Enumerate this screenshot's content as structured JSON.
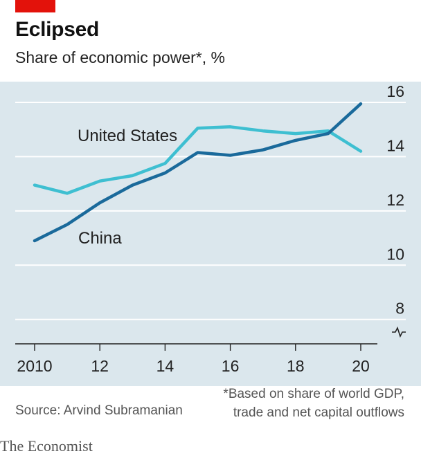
{
  "title": "Eclipsed",
  "subtitle": "Share of economic power*, %",
  "footnote_line1": "*Based on share of world GDP,",
  "footnote_line2": "trade and net capital outflows",
  "source": "Source: Arvind Subramanian",
  "brand": "The Economist",
  "colors": {
    "accent": "#e3120b",
    "background": "#dbe7ed",
    "china": "#1a6a9b",
    "us": "#3ebfd1",
    "grid": "#ffffff"
  },
  "chart_data": {
    "type": "line",
    "title": "Eclipsed",
    "subtitle": "Share of economic power*, %",
    "x": [
      2010,
      2011,
      2012,
      2013,
      2014,
      2015,
      2016,
      2017,
      2018,
      2019,
      2020
    ],
    "x_tick_values": [
      2010,
      2012,
      2014,
      2016,
      2018,
      2020
    ],
    "x_tick_labels": [
      "2010",
      "12",
      "14",
      "16",
      "18",
      "20"
    ],
    "y_ticks": [
      8,
      10,
      12,
      14,
      16
    ],
    "ylim": [
      7.1,
      16
    ],
    "grid": true,
    "series": [
      {
        "name": "United States",
        "color": "#3ebfd1",
        "values": [
          12.95,
          12.65,
          13.1,
          13.3,
          13.75,
          15.05,
          15.1,
          14.95,
          14.85,
          14.95,
          14.2
        ]
      },
      {
        "name": "China",
        "color": "#1a6a9b",
        "values": [
          10.9,
          11.5,
          12.3,
          12.95,
          13.4,
          14.15,
          14.05,
          14.25,
          14.6,
          14.85,
          15.95
        ]
      }
    ]
  }
}
